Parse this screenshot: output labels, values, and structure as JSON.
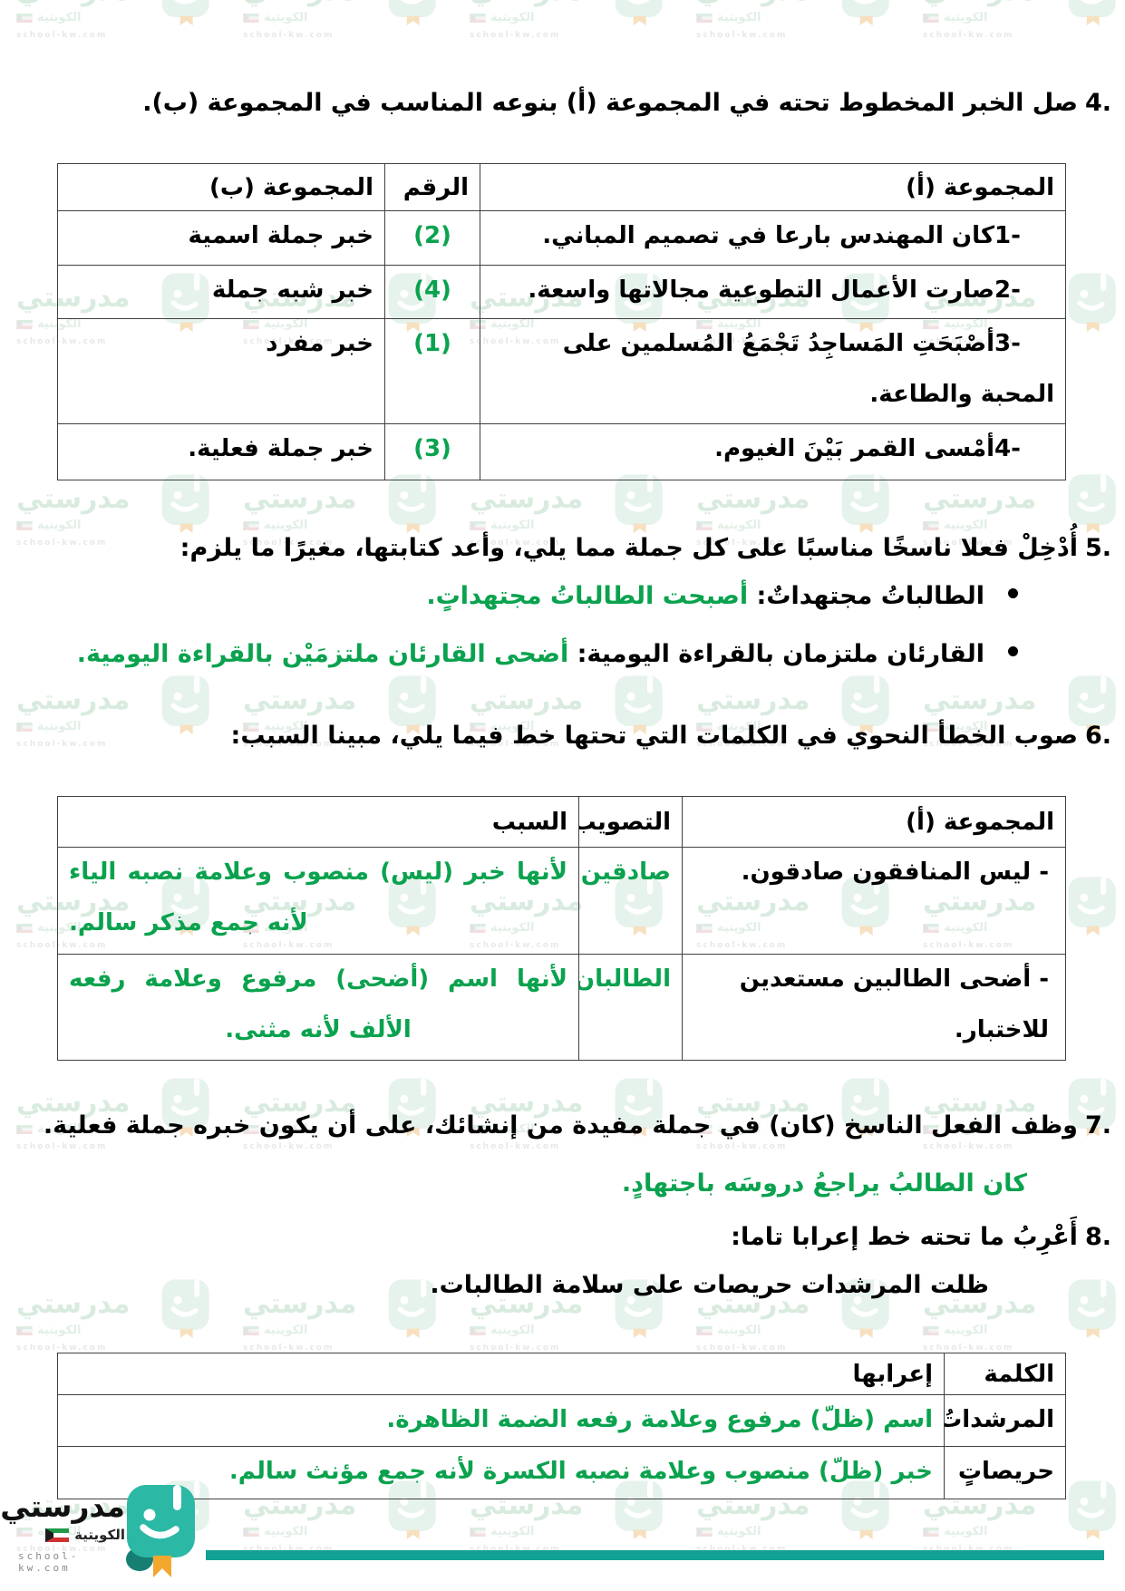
{
  "watermark": {
    "brand": "مدرستي",
    "sub": "الكويتية",
    "url": "school-kw.com"
  },
  "colors": {
    "answer_green": "#0aa24e",
    "logo_teal": "#2bb9a6",
    "logo_teal_dark": "#177e73",
    "ribbon_orange": "#f4a72d",
    "footer_bar_teal": "#13a193"
  },
  "q4": {
    "num": "4.",
    "title": "صل الخبر المخطوط تحته في المجموعة (أ) بنوعه المناسب في المجموعة (ب).",
    "table": {
      "headers": {
        "group_a": "المجموعة (أ)",
        "number": "الرقم",
        "group_b": "المجموعة (ب)"
      },
      "rows": [
        {
          "num": "1-",
          "sentence": "كان المهندس بارعا في تصميم المباني.",
          "answer": "(2)",
          "type": "خبر جملة اسمية"
        },
        {
          "num": "2-",
          "sentence": "صارت الأعمال التطوعية مجالاتها واسعة.",
          "answer": "(4)",
          "type": "خبر شبه جملة"
        },
        {
          "num": "3-",
          "sentence": "أصْبَحَتِ المَساجِدُ تَجْمَعُ المُسلمين على المحبة والطاعة.",
          "answer": "(1)",
          "type": "خبر مفرد"
        },
        {
          "num": "4-",
          "sentence": "أمْسى القمر بَيْنَ الغيوم.",
          "answer": "(3)",
          "type": "خبر جملة فعلية."
        }
      ]
    }
  },
  "q5": {
    "num": "5.",
    "title": "أُدْخِلْ فعلا ناسخًا مناسبًا على كل جملة مما يلي، وأعد كتابتها، مغيرًا ما يلزم:",
    "items": [
      {
        "prompt": "الطالباتُ مجتهداتٌ:",
        "answer": "أصبحت الطالباتُ مجتهداتٍ."
      },
      {
        "prompt": "القارئان ملتزمان بالقراءة اليومية:",
        "answer": "أضحى القارئان ملتزمَيْن بالقراءة اليومية."
      }
    ]
  },
  "q6": {
    "num": "6.",
    "title": "صوب الخطأ النحوي في الكلمات التي تحتها خط فيما يلي، مبينا السبب:",
    "table": {
      "headers": {
        "group_a": "المجموعة (أ)",
        "correction": "التصويب",
        "reason": "السبب"
      },
      "rows": [
        {
          "sentence": "- ليس المنافقون صادقون.",
          "correction": "صادقين",
          "reason": "لأنها خبر (ليس) منصوب وعلامة نصبه الياء لأنه جمع مذكر سالم."
        },
        {
          "sentence": "- أضحى الطالبين مستعدين للاختبار.",
          "correction": "الطالبان",
          "reason": "لأنها اسم (أضحى) مرفوع وعلامة رفعه الألف لأنه مثنى."
        }
      ]
    }
  },
  "q7": {
    "num": "7.",
    "title": "وظف الفعل الناسخ (كان) في جملة مفيدة من إنشائك، على أن يكون خبره جملة فعلية.",
    "answer": "كان الطالبُ يراجعُ دروسَه باجتهادٍ."
  },
  "q8": {
    "num": "8.",
    "title": "أَعْرِبُ ما تحته خط إعرابا تاما:",
    "sentence": "ظلت المرشدات حريصات على سلامة الطالبات.",
    "table": {
      "headers": {
        "word": "الكلمة",
        "parsing": "إعرابها"
      },
      "rows": [
        {
          "word": "المرشداتُ",
          "parsing": "اسم (ظلّ) مرفوع وعلامة رفعه الضمة الظاهرة."
        },
        {
          "word": "حريصاتٍ",
          "parsing": "خبر (ظلّ) منصوب وعلامة نصبه الكسرة لأنه جمع مؤنث سالم."
        }
      ]
    }
  },
  "footer": {
    "brand": "مدرستي",
    "sub": "الكويتية",
    "url": "school-kw.com"
  }
}
